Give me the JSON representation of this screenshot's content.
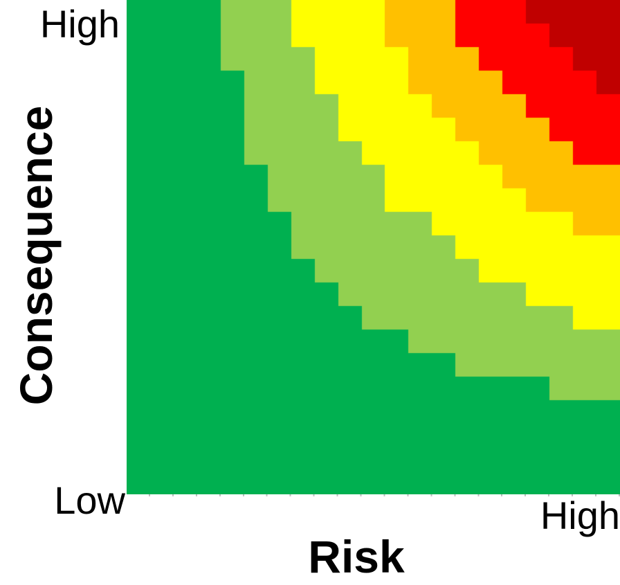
{
  "chart_data": {
    "type": "heatmap",
    "xlabel": "Risk",
    "ylabel": "Consequence",
    "labels": {
      "origin": "Low",
      "y_max": "High",
      "x_max": "High"
    },
    "grid": {
      "columns": 21,
      "rows": 21
    },
    "plot_background": "#FFFFFF",
    "text_color": "#000000",
    "axis_tick_color": "#BFBFBF",
    "bands": [
      {
        "name": "green",
        "color": "#00B050"
      },
      {
        "name": "light-green",
        "color": "#92D050",
        "start_col_by_row": [
          4,
          4,
          4,
          5,
          5,
          5,
          5,
          6,
          6,
          7,
          7,
          8,
          9,
          10,
          12,
          14,
          18,
          21,
          21,
          21,
          21
        ]
      },
      {
        "name": "yellow",
        "color": "#FFFF00",
        "start_col_by_row": [
          7,
          7,
          8,
          8,
          9,
          9,
          10,
          11,
          11,
          13,
          14,
          15,
          17,
          19,
          21,
          21,
          21,
          21,
          21,
          21,
          21
        ]
      },
      {
        "name": "orange",
        "color": "#FFC000",
        "start_col_by_row": [
          11,
          11,
          12,
          12,
          13,
          14,
          15,
          16,
          17,
          19,
          21,
          21,
          21,
          21,
          21,
          21,
          21,
          21,
          21,
          21,
          21
        ]
      },
      {
        "name": "red",
        "color": "#FF0000",
        "start_col_by_row": [
          14,
          14,
          15,
          16,
          17,
          18,
          19,
          21,
          21,
          21,
          21,
          21,
          21,
          21,
          21,
          21,
          21,
          21,
          21,
          21,
          21
        ]
      },
      {
        "name": "dark-red",
        "color": "#C00000",
        "start_col_by_row": [
          17,
          18,
          19,
          20,
          21,
          21,
          21,
          21,
          21,
          21,
          21,
          21,
          21,
          21,
          21,
          21,
          21,
          21,
          21,
          21,
          21
        ]
      }
    ]
  }
}
